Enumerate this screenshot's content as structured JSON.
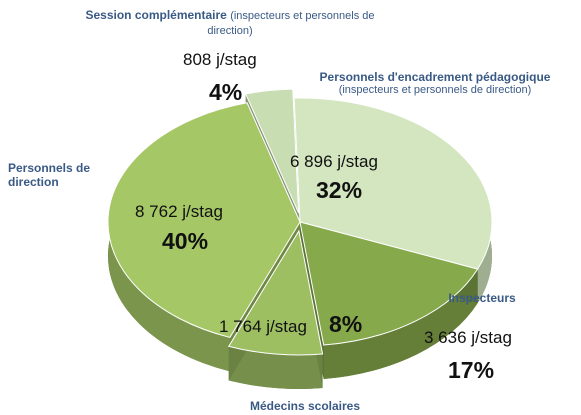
{
  "chart_data": {
    "type": "pie3d",
    "categories": [
      "Session complémentaire",
      "Personnels d'encadrement pédagogique",
      "Inspecteurs",
      "Médecins scolaires",
      "Personnels de direction"
    ],
    "notes": [
      "(inspecteurs et personnels de direction)",
      "(inspecteurs et personnels de direction)",
      null,
      null,
      null
    ],
    "values": [
      4,
      32,
      17,
      8,
      40
    ],
    "value_labels": [
      "4%",
      "32%",
      "17%",
      "8%",
      "40%"
    ],
    "day_labels": [
      "808 j/stag",
      "6 896 j/stag",
      "3 636 j/stag",
      "1 764 j/stag",
      "8 762 j/stag"
    ],
    "colors": [
      "#c9ddb2",
      "#d4e6c0",
      "#86a94c",
      "#9dbf62",
      "#a5c765"
    ],
    "explode": [
      true,
      false,
      false,
      true,
      false
    ]
  }
}
